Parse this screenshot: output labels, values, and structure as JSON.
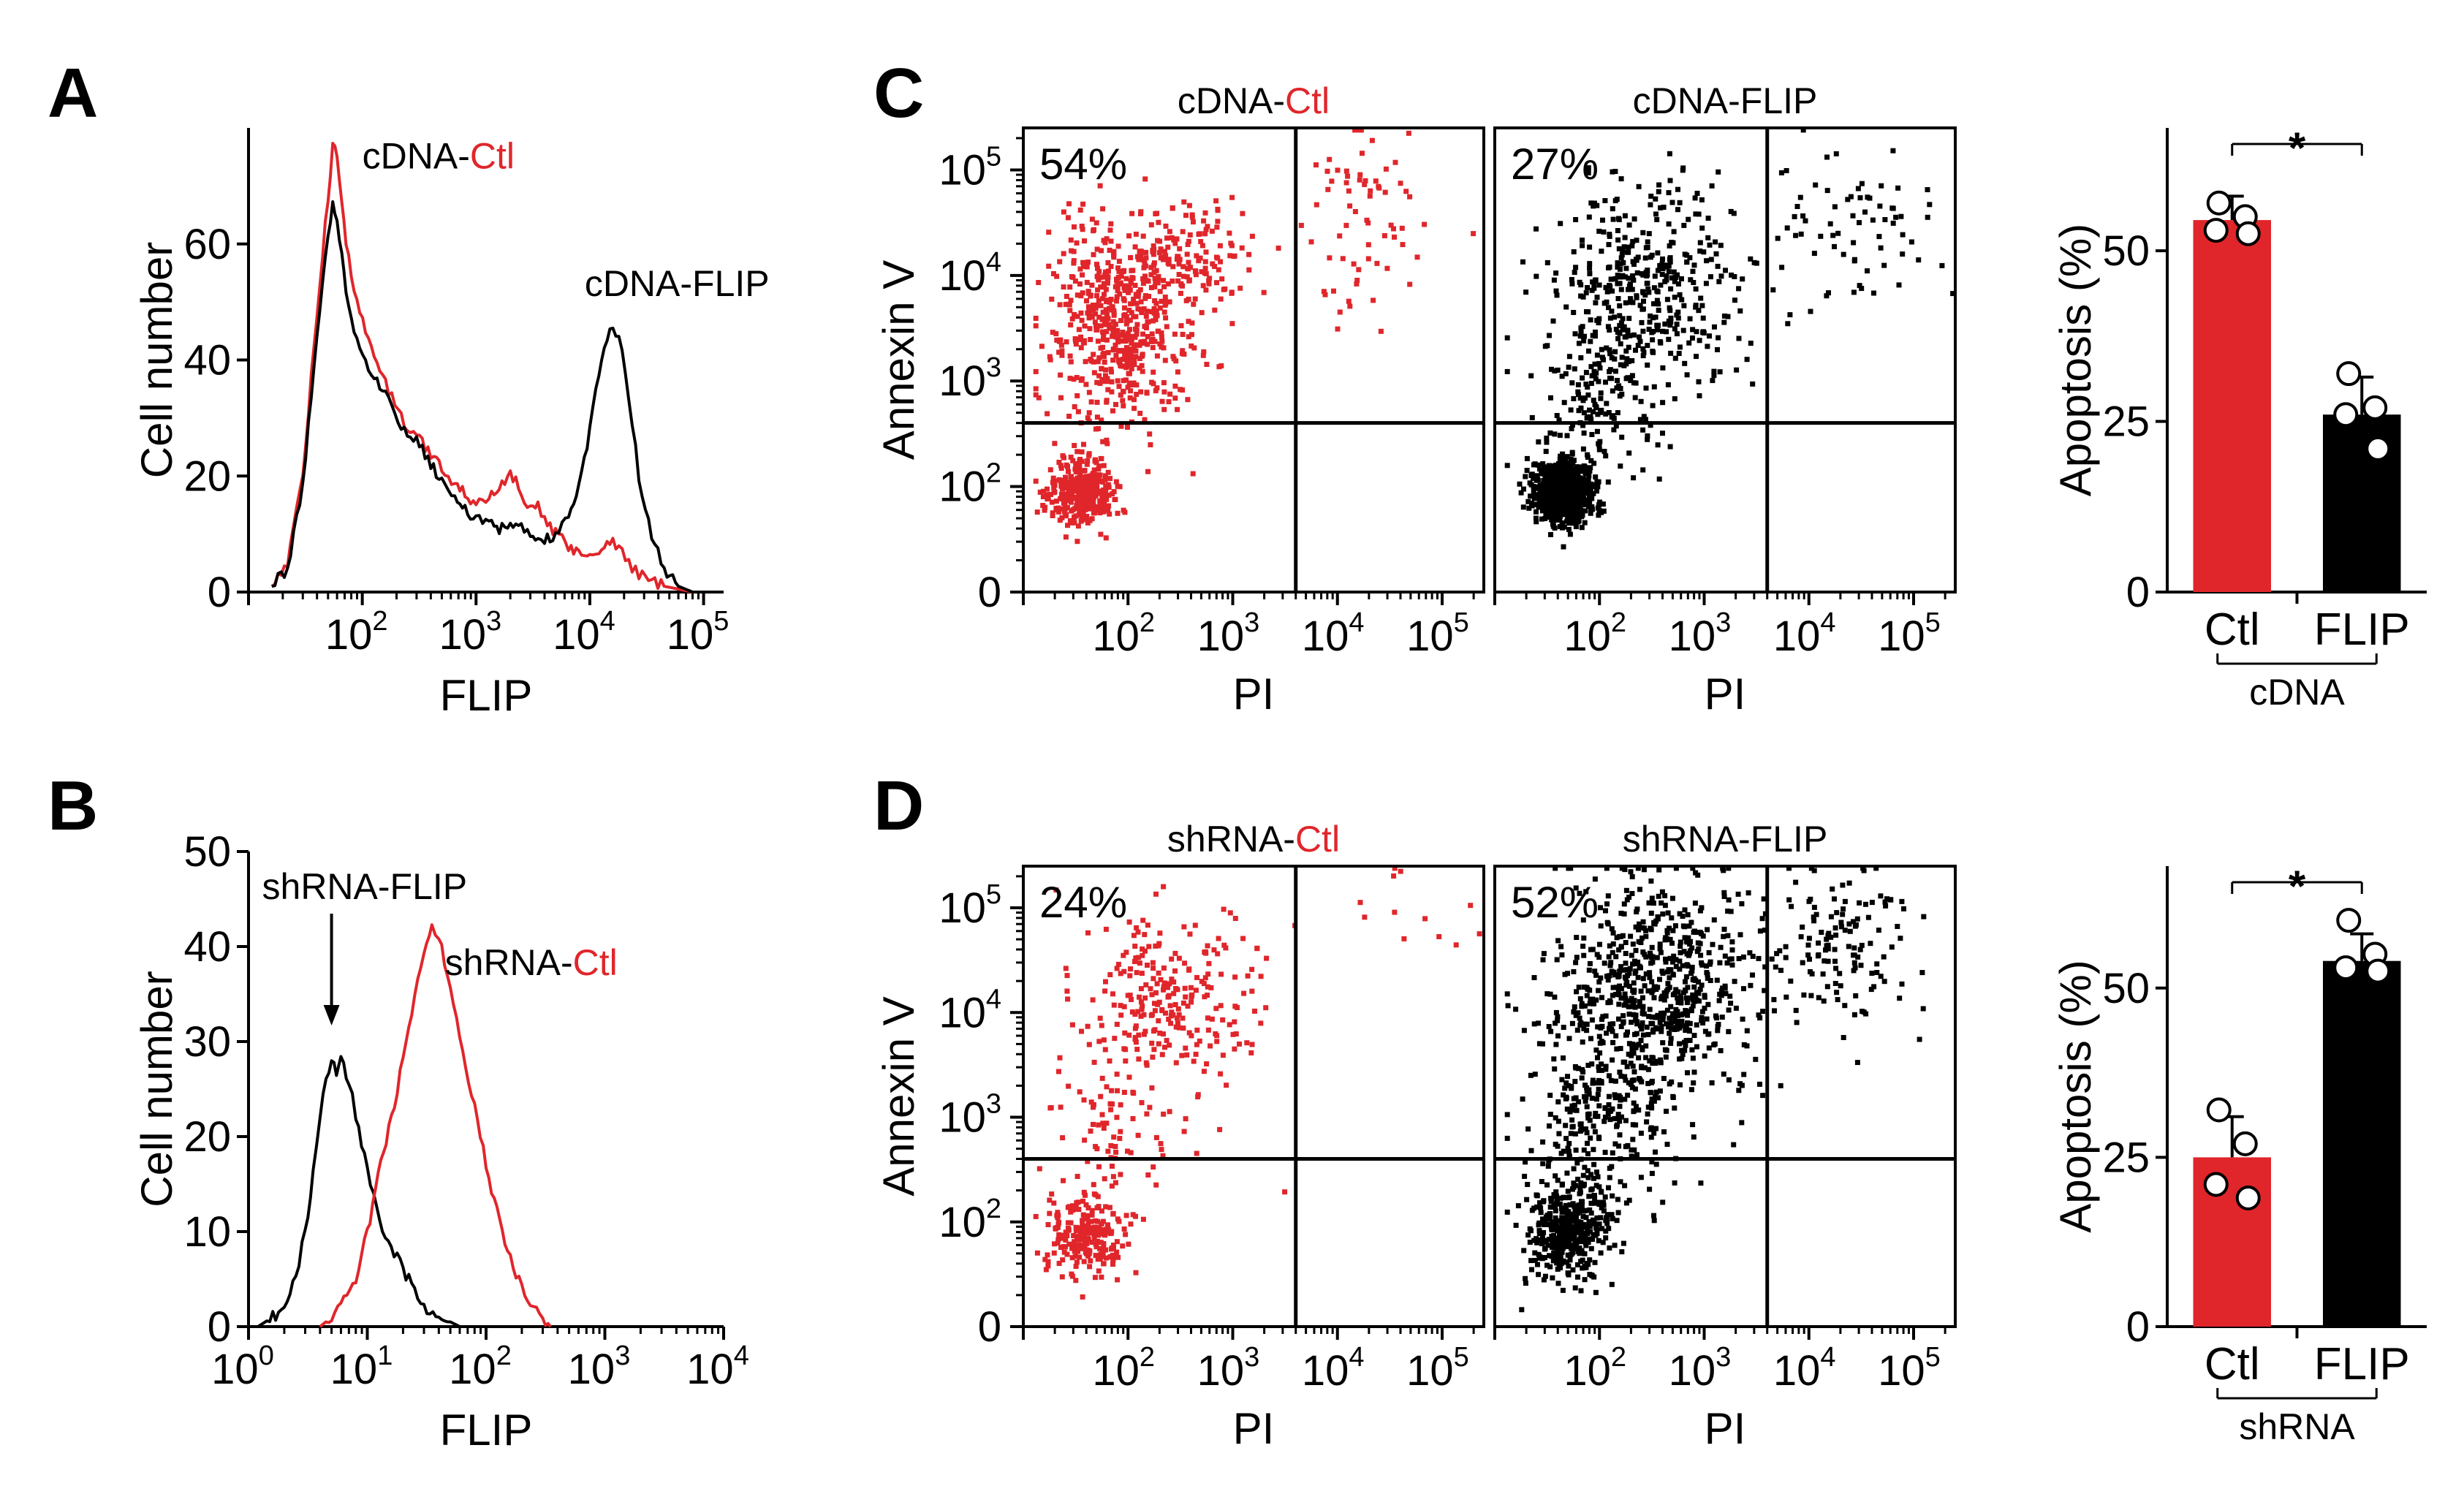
{
  "colors": {
    "control": "#e0262b",
    "flip": "#000000"
  },
  "panel_letters": [
    "A",
    "B",
    "C",
    "D"
  ],
  "chart_data": [
    {
      "id": "A",
      "type": "line",
      "title": "",
      "xlabel": "FLIP",
      "ylabel": "Cell number",
      "x_scale": "log10",
      "xlim": [
        10,
        150000
      ],
      "ylim": [
        0,
        80
      ],
      "x_ticks": [
        {
          "base": "10",
          "exp": "2",
          "value": 100
        },
        {
          "base": "10",
          "exp": "3",
          "value": 1000
        },
        {
          "base": "10",
          "exp": "4",
          "value": 10000
        },
        {
          "base": "10",
          "exp": "5",
          "value": 100000
        }
      ],
      "y_ticks": [
        0,
        20,
        40,
        60
      ],
      "annotations": [
        {
          "prefix": "cDNA-",
          "suffix": "Ctl",
          "suffix_color": "#e0262b",
          "at": [
            100,
            73
          ]
        },
        {
          "prefix": "cDNA-FLIP",
          "suffix": "",
          "suffix_color": "#000000",
          "at": [
            9000,
            51
          ]
        }
      ],
      "series": [
        {
          "name": "cDNA-Ctl",
          "color": "#e0262b",
          "x": [
            16,
            22,
            30,
            40,
            50,
            55,
            60,
            66,
            72,
            80,
            95,
            120,
            160,
            220,
            300,
            400,
            500,
            650,
            800,
            1000,
            1300,
            1600,
            2000,
            2500,
            3000,
            3500,
            4000,
            5000,
            6500,
            8000,
            10000,
            12000,
            15000,
            18000,
            22000,
            27000,
            35000,
            45000,
            60000,
            80000
          ],
          "y": [
            1,
            5,
            20,
            48,
            68,
            77,
            75,
            68,
            60,
            55,
            48,
            42,
            36,
            30,
            27,
            24,
            21,
            18,
            17,
            15,
            16,
            18,
            21,
            17,
            14,
            15,
            12,
            10,
            8,
            7,
            6,
            7,
            9,
            8,
            5,
            3,
            2,
            1,
            0.5,
            0
          ]
        },
        {
          "name": "cDNA-FLIP",
          "color": "#000000",
          "x": [
            16,
            22,
            30,
            40,
            50,
            55,
            60,
            66,
            72,
            80,
            95,
            120,
            160,
            220,
            300,
            400,
            500,
            650,
            800,
            1000,
            1300,
            1600,
            2000,
            2500,
            3000,
            3500,
            4000,
            5000,
            6500,
            8000,
            10000,
            12000,
            15000,
            18000,
            22000,
            27000,
            35000,
            45000,
            60000,
            80000
          ],
          "y": [
            1,
            4,
            18,
            45,
            62,
            67,
            64,
            58,
            52,
            47,
            42,
            38,
            34,
            29,
            26,
            22,
            19,
            16,
            14,
            13,
            12,
            11,
            12,
            11,
            10,
            9,
            9,
            10,
            13,
            18,
            28,
            38,
            46,
            44,
            34,
            20,
            10,
            4,
            1,
            0
          ]
        }
      ]
    },
    {
      "id": "B",
      "type": "line",
      "title": "",
      "xlabel": "FLIP",
      "ylabel": "Cell number",
      "x_scale": "log10",
      "xlim": [
        1,
        10000
      ],
      "ylim": [
        0,
        50
      ],
      "x_ticks": [
        {
          "base": "10",
          "exp": "0",
          "value": 1
        },
        {
          "base": "10",
          "exp": "1",
          "value": 10
        },
        {
          "base": "10",
          "exp": "2",
          "value": 100
        },
        {
          "base": "10",
          "exp": "3",
          "value": 1000
        },
        {
          "base": "10",
          "exp": "4",
          "value": 10000
        }
      ],
      "y_ticks": [
        0,
        10,
        20,
        30,
        40,
        50
      ],
      "annotations": [
        {
          "prefix": "shRNA-FLIP",
          "suffix": "",
          "suffix_color": "#000000",
          "at": [
            1.3,
            45
          ],
          "arrow_to": [
            5,
            32
          ]
        },
        {
          "prefix": "shRNA-",
          "suffix": "Ctl",
          "suffix_color": "#e0262b",
          "at": [
            45,
            37
          ]
        }
      ],
      "series": [
        {
          "name": "shRNA-FLIP",
          "color": "#000000",
          "x": [
            1.2,
            1.6,
            2,
            2.5,
            3,
            3.5,
            4,
            4.5,
            5,
            5.5,
            6,
            7,
            8,
            10,
            12,
            15,
            20,
            25,
            30,
            40,
            50,
            60
          ],
          "y": [
            0,
            1,
            2,
            5,
            10,
            16,
            22,
            26,
            28,
            27,
            28,
            26,
            22,
            17,
            12,
            9,
            6,
            4,
            2,
            1,
            0.5,
            0
          ]
        },
        {
          "name": "shRNA-Ctl",
          "color": "#e0262b",
          "x": [
            4,
            5,
            6,
            8,
            10,
            13,
            16,
            20,
            25,
            30,
            35,
            40,
            50,
            60,
            80,
            100,
            130,
            160,
            200,
            250,
            300,
            350
          ],
          "y": [
            0,
            1,
            2,
            5,
            10,
            17,
            22,
            28,
            35,
            39,
            42,
            41,
            36,
            31,
            23,
            17,
            11,
            7,
            4,
            2,
            1,
            0
          ]
        }
      ]
    },
    {
      "id": "C-Ctl",
      "type": "scatter",
      "title_prefix": "cDNA-",
      "title_suffix": "Ctl",
      "title_suffix_color": "#e0262b",
      "xlabel": "PI",
      "ylabel": "Annexin V",
      "x_scale": "log10",
      "y_scale": "log10",
      "xlim": [
        10,
        250000
      ],
      "ylim": [
        10,
        250000
      ],
      "x_ticks": [
        {
          "base": "10",
          "exp": "2",
          "value": 100
        },
        {
          "base": "10",
          "exp": "3",
          "value": 1000
        },
        {
          "base": "10",
          "exp": "4",
          "value": 10000
        },
        {
          "base": "10",
          "exp": "5",
          "value": 100000
        }
      ],
      "y_ticks": [
        {
          "base": "10",
          "exp": "2",
          "value": 100
        },
        {
          "base": "10",
          "exp": "3",
          "value": 1000
        },
        {
          "base": "10",
          "exp": "4",
          "value": 10000
        },
        {
          "base": "10",
          "exp": "5",
          "value": 100000
        }
      ],
      "y_zero_label": "0",
      "gate": {
        "x": 4000,
        "y": 400
      },
      "percent_label": "54%",
      "color": "#e0262b",
      "populations": [
        {
          "count": 330,
          "cx_log": 1.55,
          "cy_log": 1.95,
          "sx": 0.17,
          "sy": 0.17
        },
        {
          "count": 560,
          "cx_log": 1.9,
          "cy_log": 3.55,
          "sx": 0.35,
          "sy": 0.5
        },
        {
          "count": 140,
          "cx_log": 2.55,
          "cy_log": 4.2,
          "sx": 0.3,
          "sy": 0.25
        },
        {
          "count": 70,
          "cx_log": 4.3,
          "cy_log": 4.55,
          "sx": 0.35,
          "sy": 0.45
        }
      ]
    },
    {
      "id": "C-FLIP",
      "type": "scatter",
      "title_prefix": "cDNA-FLIP",
      "title_suffix": "",
      "title_suffix_color": "#000000",
      "xlabel": "PI",
      "ylabel": "",
      "x_scale": "log10",
      "y_scale": "log10",
      "xlim": [
        10,
        250000
      ],
      "ylim": [
        10,
        250000
      ],
      "x_ticks": [
        {
          "base": "10",
          "exp": "2",
          "value": 100
        },
        {
          "base": "10",
          "exp": "3",
          "value": 1000
        },
        {
          "base": "10",
          "exp": "4",
          "value": 10000
        },
        {
          "base": "10",
          "exp": "5",
          "value": 100000
        }
      ],
      "gate": {
        "x": 4000,
        "y": 400
      },
      "percent_label": "27%",
      "color": "#000000",
      "populations": [
        {
          "count": 950,
          "cx_log": 1.65,
          "cy_log": 1.95,
          "sx": 0.14,
          "sy": 0.14
        },
        {
          "count": 140,
          "cx_log": 2.0,
          "cy_log": 2.8,
          "sx": 0.3,
          "sy": 0.4
        },
        {
          "count": 420,
          "cx_log": 2.45,
          "cy_log": 3.85,
          "sx": 0.45,
          "sy": 0.5
        },
        {
          "count": 70,
          "cx_log": 4.4,
          "cy_log": 4.5,
          "sx": 0.4,
          "sy": 0.35
        }
      ]
    },
    {
      "id": "C-bar",
      "type": "bar",
      "title": "",
      "ylabel": "Apoptosis (%)",
      "ylim": [
        0,
        68
      ],
      "y_ticks": [
        0,
        25,
        50
      ],
      "categories": [
        "Ctl",
        "FLIP"
      ],
      "category_colors": [
        "#e0262b",
        "#000000"
      ],
      "values": [
        54.5,
        26
      ],
      "errors": [
        3.5,
        5.5
      ],
      "points": [
        [
          57,
          55,
          53,
          52.5
        ],
        [
          32,
          27,
          26,
          21
        ]
      ],
      "group_label": "cDNA",
      "significance": "*"
    },
    {
      "id": "D-Ctl",
      "type": "scatter",
      "title_prefix": "shRNA-",
      "title_suffix": "Ctl",
      "title_suffix_color": "#e0262b",
      "xlabel": "PI",
      "ylabel": "Annexin V",
      "x_scale": "log10",
      "y_scale": "log10",
      "xlim": [
        10,
        250000
      ],
      "ylim": [
        10,
        250000
      ],
      "x_ticks": [
        {
          "base": "10",
          "exp": "2",
          "value": 100
        },
        {
          "base": "10",
          "exp": "3",
          "value": 1000
        },
        {
          "base": "10",
          "exp": "4",
          "value": 10000
        },
        {
          "base": "10",
          "exp": "5",
          "value": 100000
        }
      ],
      "y_ticks": [
        {
          "base": "10",
          "exp": "2",
          "value": 100
        },
        {
          "base": "10",
          "exp": "3",
          "value": 1000
        },
        {
          "base": "10",
          "exp": "4",
          "value": 10000
        },
        {
          "base": "10",
          "exp": "5",
          "value": 100000
        }
      ],
      "y_zero_label": "0",
      "gate": {
        "x": 4000,
        "y": 400
      },
      "percent_label": "24%",
      "color": "#e0262b",
      "populations": [
        {
          "count": 230,
          "cx_log": 1.6,
          "cy_log": 1.85,
          "sx": 0.2,
          "sy": 0.2
        },
        {
          "count": 70,
          "cx_log": 1.9,
          "cy_log": 2.9,
          "sx": 0.3,
          "sy": 0.3
        },
        {
          "count": 260,
          "cx_log": 2.4,
          "cy_log": 4.1,
          "sx": 0.45,
          "sy": 0.45
        },
        {
          "count": 12,
          "cx_log": 4.8,
          "cy_log": 5.0,
          "sx": 0.35,
          "sy": 0.25
        }
      ]
    },
    {
      "id": "D-FLIP",
      "type": "scatter",
      "title_prefix": "shRNA-FLIP",
      "title_suffix": "",
      "title_suffix_color": "#000000",
      "xlabel": "PI",
      "ylabel": "",
      "x_scale": "log10",
      "y_scale": "log10",
      "xlim": [
        10,
        250000
      ],
      "ylim": [
        10,
        250000
      ],
      "x_ticks": [
        {
          "base": "10",
          "exp": "2",
          "value": 100
        },
        {
          "base": "10",
          "exp": "3",
          "value": 1000
        },
        {
          "base": "10",
          "exp": "4",
          "value": 10000
        },
        {
          "base": "10",
          "exp": "5",
          "value": 100000
        }
      ],
      "gate": {
        "x": 4000,
        "y": 400
      },
      "percent_label": "52%",
      "color": "#000000",
      "populations": [
        {
          "count": 420,
          "cx_log": 1.7,
          "cy_log": 1.9,
          "sx": 0.18,
          "sy": 0.22
        },
        {
          "count": 260,
          "cx_log": 2.0,
          "cy_log": 3.0,
          "sx": 0.35,
          "sy": 0.45
        },
        {
          "count": 700,
          "cx_log": 2.5,
          "cy_log": 4.2,
          "sx": 0.5,
          "sy": 0.5
        },
        {
          "count": 130,
          "cx_log": 4.3,
          "cy_log": 4.6,
          "sx": 0.35,
          "sy": 0.4
        }
      ]
    },
    {
      "id": "D-bar",
      "type": "bar",
      "title": "",
      "ylabel": "Apoptosis (%)",
      "ylim": [
        0,
        68
      ],
      "y_ticks": [
        0,
        25,
        50
      ],
      "categories": [
        "Ctl",
        "FLIP"
      ],
      "category_colors": [
        "#e0262b",
        "#000000"
      ],
      "values": [
        25,
        54
      ],
      "errors": [
        6,
        4
      ],
      "points": [
        [
          32,
          27,
          21,
          19
        ],
        [
          60,
          55,
          53,
          52.5
        ]
      ],
      "group_label": "shRNA",
      "significance": "*"
    }
  ]
}
